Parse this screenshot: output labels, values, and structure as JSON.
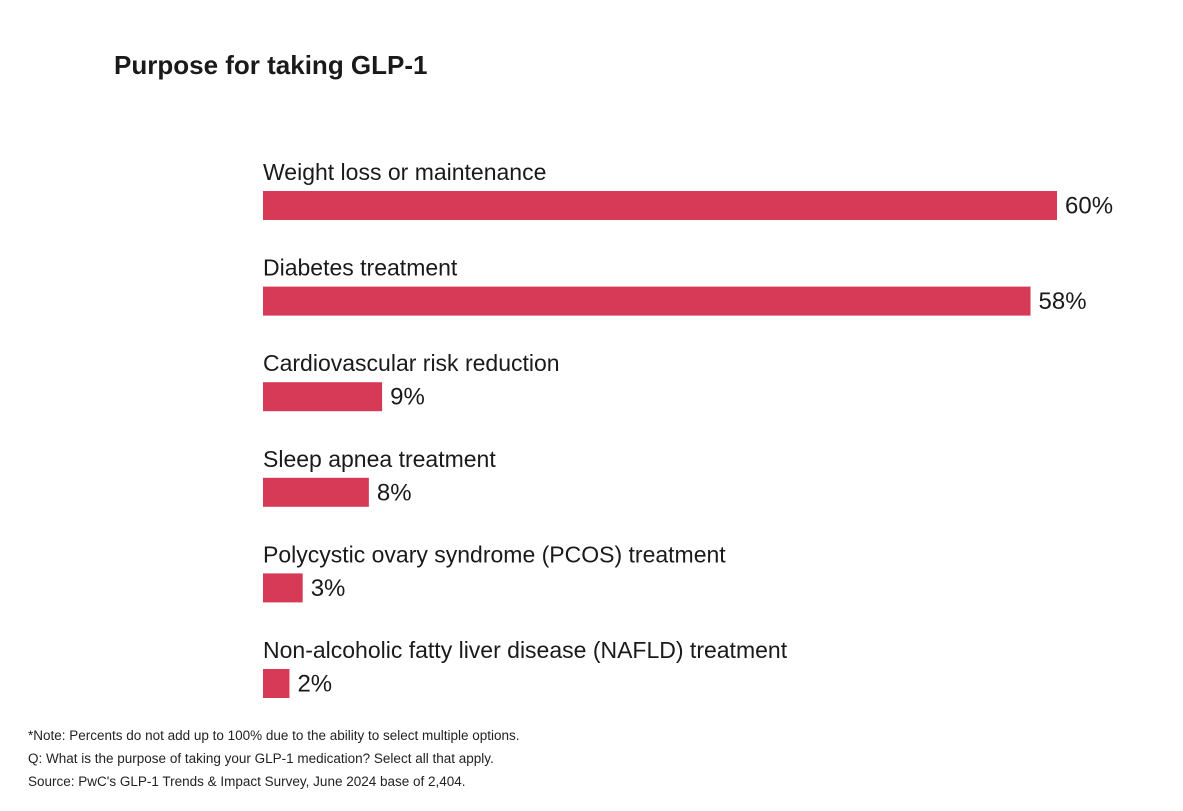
{
  "title": "Purpose for taking GLP-1",
  "colors": {
    "bar": "#d63a57",
    "text": "#1a1a1a"
  },
  "chart_data": {
    "type": "bar",
    "orientation": "horizontal",
    "title": "Purpose for taking GLP-1",
    "categories": [
      "Weight loss or maintenance",
      "Diabetes treatment",
      "Cardiovascular risk reduction",
      "Sleep apnea treatment",
      "Polycystic ovary syndrome (PCOS) treatment",
      "Non-alcoholic fatty liver disease (NAFLD) treatment"
    ],
    "values": [
      60,
      58,
      9,
      8,
      3,
      2
    ],
    "value_labels": [
      "60%",
      "58%",
      "9%",
      "8%",
      "3%",
      "2%"
    ],
    "xlim": [
      0,
      60
    ],
    "unit": "%",
    "grid": false,
    "legend": "none"
  },
  "notes": {
    "note": "*Note: Percents do not add up to 100% due to the ability to select multiple options.",
    "question": "Q: What is the purpose of taking your GLP-1 medication? Select all that apply.",
    "source": "Source: PwC's GLP-1 Trends & Impact Survey, June 2024 base of 2,404."
  }
}
